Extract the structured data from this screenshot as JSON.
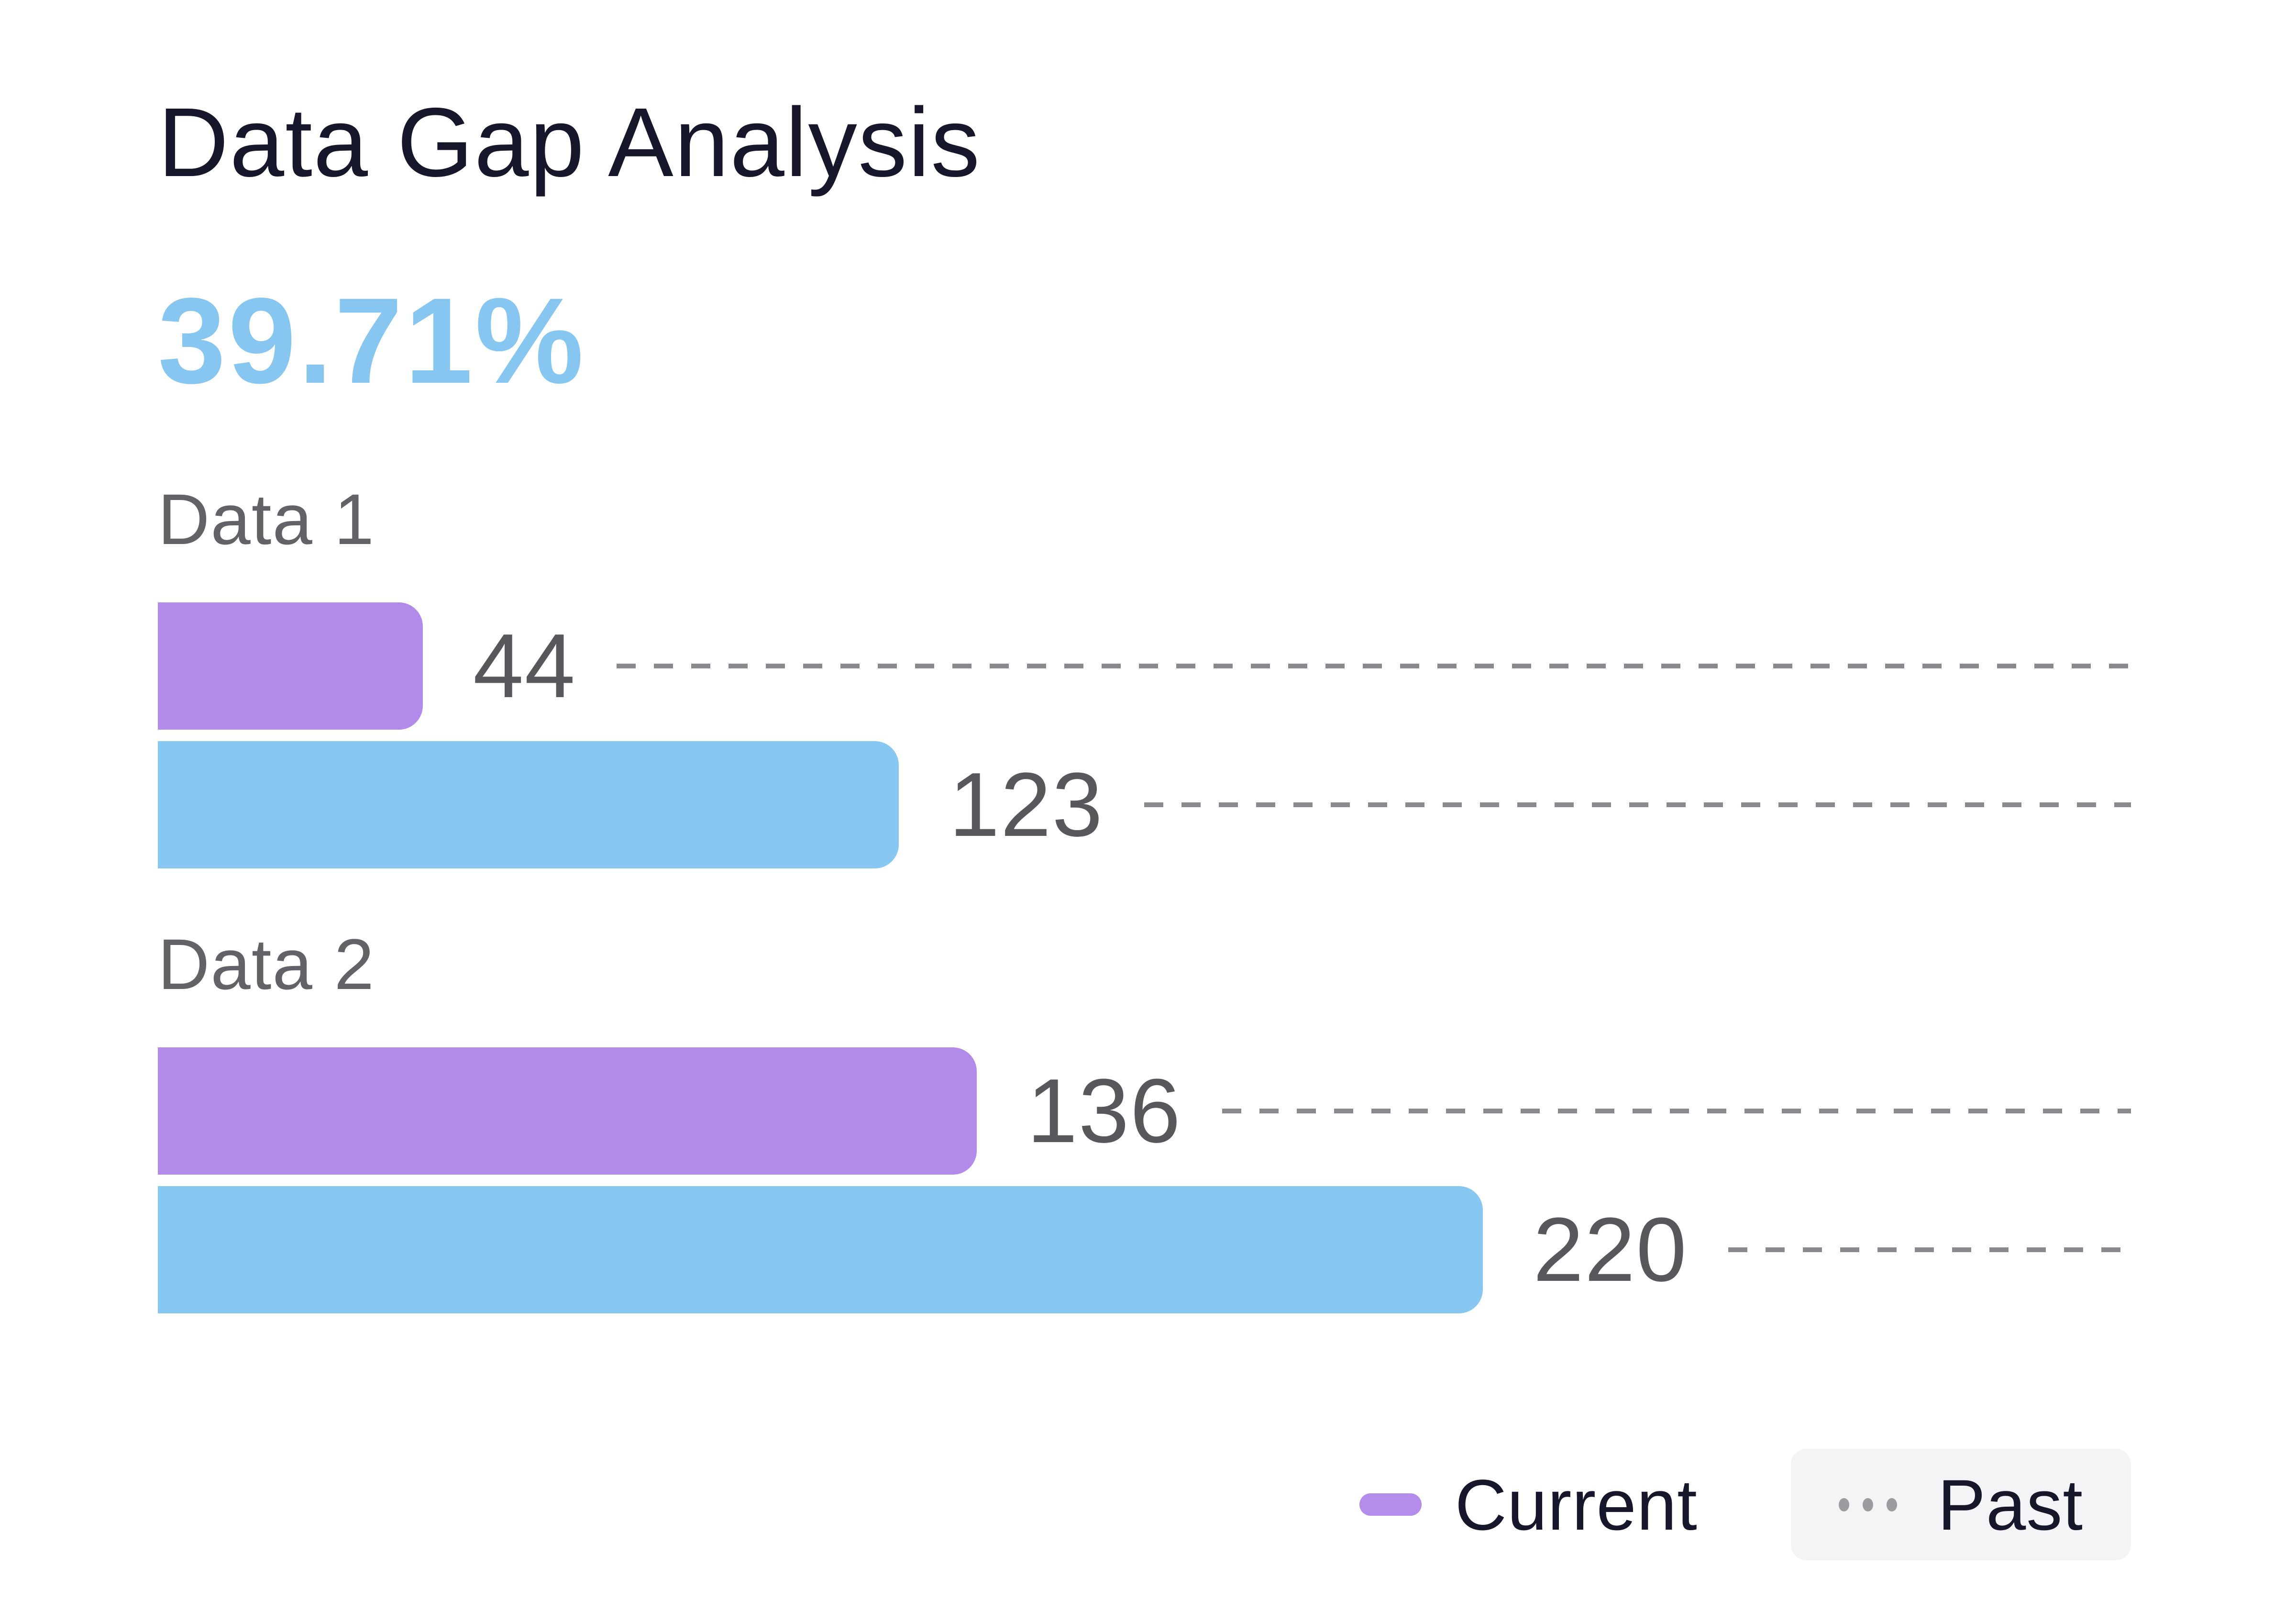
{
  "card": {
    "title": "Data Gap Analysis",
    "metric_value": "39.71%"
  },
  "chart_data": {
    "type": "bar",
    "orientation": "horizontal",
    "title": "Data Gap Analysis",
    "headline_metric": "39.71%",
    "categories": [
      "Data 1",
      "Data 2"
    ],
    "series": [
      {
        "name": "Current",
        "color": "#b28ae9",
        "values": [
          44,
          136
        ]
      },
      {
        "name": "Past",
        "color": "#87c7f1",
        "values": [
          123,
          220
        ]
      }
    ],
    "xlim": [
      0,
      220
    ],
    "grid": false,
    "value_labels_shown": true,
    "leader_line_style": "dashed",
    "legend_position": "bottom-right"
  },
  "legend": {
    "items": [
      {
        "label": "Current",
        "swatch": "purple-pill",
        "color": "#b48ceb"
      },
      {
        "label": "Past",
        "swatch": "gray-dots",
        "color": "#9b9ba0",
        "background": "#f4f4f6"
      }
    ]
  },
  "colors": {
    "background": "#ffffff",
    "title_text": "#16172b",
    "metric_text": "#87c6f0",
    "category_text": "#626267",
    "value_text": "#57575c",
    "leader_dash": "#8a8a8e",
    "current_bar": "#b28ae9",
    "past_bar": "#87c7f1",
    "legend_text": "#16172b"
  }
}
